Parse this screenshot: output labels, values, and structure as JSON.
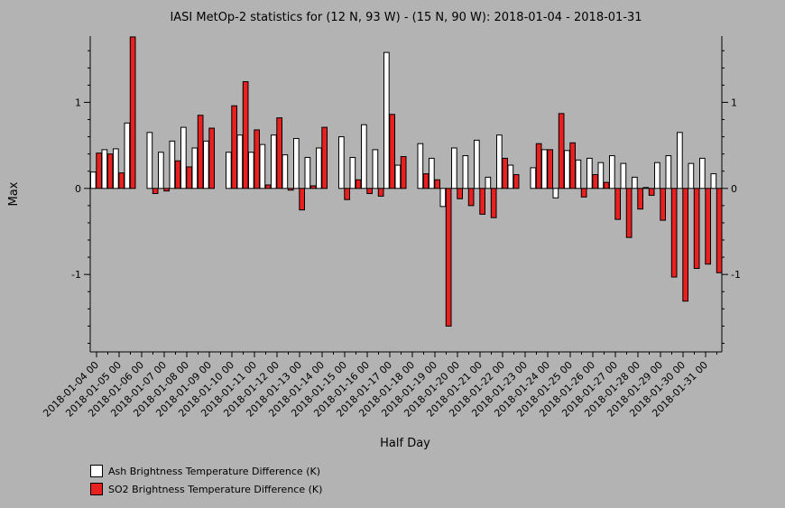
{
  "chart_data": {
    "type": "bar",
    "title": "IASI MetOp-2 statistics for (12 N, 93 W) - (15 N, 90 W): 2018-01-04 - 2018-01-31",
    "xlabel": "Half Day",
    "ylabel": "Max",
    "ylim": [
      -1.9,
      1.77
    ],
    "yticks": [
      -1,
      0,
      1
    ],
    "y_tick_labels": [
      "-1",
      "0",
      "1"
    ],
    "x_tick_labels": [
      "2018-01-04 00",
      "2018-01-05 00",
      "2018-01-06 00",
      "2018-01-07 00",
      "2018-01-08 00",
      "2018-01-09 00",
      "2018-01-10 00",
      "2018-01-11 00",
      "2018-01-12 00",
      "2018-01-13 00",
      "2018-01-14 00",
      "2018-01-15 00",
      "2018-01-16 00",
      "2018-01-17 00",
      "2018-01-18 00",
      "2018-01-19 00",
      "2018-01-20 00",
      "2018-01-21 00",
      "2018-01-22 00",
      "2018-01-23 00",
      "2018-01-24 00",
      "2018-01-25 00",
      "2018-01-26 00",
      "2018-01-27 00",
      "2018-01-28 00",
      "2018-01-29 00",
      "2018-01-30 00",
      "2018-01-31 00"
    ],
    "grid": false,
    "legend_position": "bottom-left",
    "series": [
      {
        "name": "Ash Brightness Temperature Difference (K)",
        "color": "#ffffff",
        "values": [
          0.19,
          0.45,
          0.46,
          0.76,
          null,
          0.65,
          0.42,
          0.55,
          0.71,
          0.47,
          0.55,
          null,
          0.42,
          0.62,
          0.42,
          0.51,
          0.62,
          0.39,
          0.58,
          0.36,
          0.47,
          null,
          0.6,
          0.36,
          0.74,
          0.45,
          1.58,
          0.27,
          null,
          0.52,
          0.35,
          -0.21,
          0.47,
          0.38,
          0.56,
          0.13,
          0.62,
          0.27,
          null,
          0.24,
          0.45,
          -0.11,
          0.44,
          0.33,
          0.35,
          0.3,
          0.38,
          0.29,
          0.13,
          0.01,
          0.3,
          0.38,
          0.65,
          0.29,
          0.35,
          0.17
        ]
      },
      {
        "name": "SO2 Brightness Temperature Difference (K)",
        "color": "#e82020",
        "values": [
          0.41,
          0.4,
          0.18,
          1.76,
          null,
          -0.06,
          -0.03,
          0.32,
          0.25,
          0.85,
          0.7,
          null,
          0.96,
          1.24,
          0.68,
          0.04,
          0.82,
          -0.02,
          -0.25,
          0.03,
          0.71,
          null,
          -0.13,
          0.1,
          -0.06,
          -0.09,
          0.86,
          0.37,
          null,
          0.17,
          0.1,
          -1.6,
          -0.12,
          -0.2,
          -0.3,
          -0.34,
          0.35,
          0.16,
          null,
          0.52,
          0.45,
          0.87,
          0.53,
          -0.1,
          0.16,
          0.07,
          -0.36,
          -0.57,
          -0.24,
          -0.08,
          -0.37,
          -1.03,
          -1.31,
          -0.93,
          -0.88,
          -0.98
        ]
      }
    ]
  },
  "legend": {
    "ash_label": "Ash Brightness Temperature Difference (K)",
    "so2_label": "SO2 Brightness Temperature Difference (K)",
    "ash_color": "#ffffff",
    "so2_color": "#e82020"
  }
}
